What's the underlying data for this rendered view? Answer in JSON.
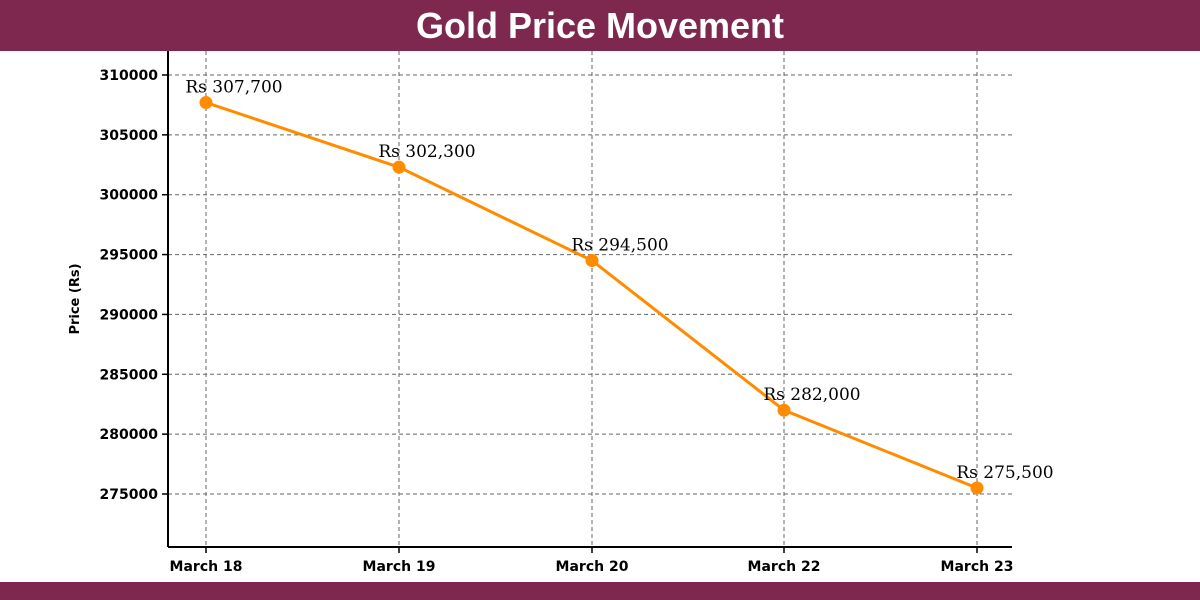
{
  "title": "Gold Price Movement",
  "colors": {
    "banner": "#7E2850",
    "line": "#FF8C00",
    "grid": "#666666"
  },
  "chart_data": {
    "type": "line",
    "title": "Gold Price Movement",
    "xlabel": "",
    "ylabel": "Price (Rs)",
    "categories": [
      "March 18",
      "March 19",
      "March 20",
      "March 22",
      "March 23"
    ],
    "values": [
      307700,
      302300,
      294500,
      282000,
      275500
    ],
    "data_labels": [
      "Rs 307,700",
      "Rs 302,300",
      "Rs 294,500",
      "Rs 282,000",
      "Rs 275,500"
    ],
    "yticks": [
      275000,
      280000,
      285000,
      290000,
      295000,
      300000,
      305000,
      310000
    ],
    "ylim": [
      270500,
      311000
    ],
    "grid": true,
    "grid_style": "dashed",
    "legend": "none"
  }
}
